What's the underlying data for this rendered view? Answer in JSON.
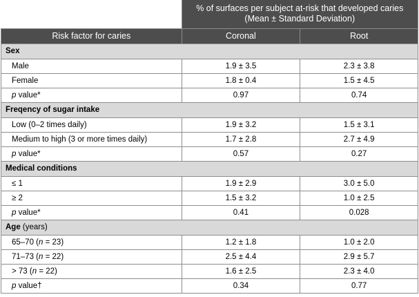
{
  "table": {
    "group_header": "% of surfaces per subject at-risk that developed caries (Mean ± Standard Deviation)",
    "col_risk": "Risk factor for caries",
    "col_coronal": "Coronal",
    "col_root": "Root",
    "sex": {
      "title": "Sex",
      "rows": [
        {
          "label": "Male",
          "coronal": "1.9 ± 3.5",
          "root": "2.3 ± 3.8"
        },
        {
          "label": "Female",
          "coronal": "1.8 ± 0.4",
          "root": "1.5 ± 4.5"
        }
      ],
      "p": {
        "italic": "p",
        "rest": " value*",
        "coronal": "0.97",
        "root": "0.74"
      }
    },
    "sugar": {
      "title": "Freqency of sugar intake",
      "rows": [
        {
          "label": "Low (0–2 times daily)",
          "coronal": "1.9 ± 3.2",
          "root": "1.5 ± 3.1"
        },
        {
          "label": "Medium to high (3 or more times daily)",
          "coronal": "1.7 ± 2.8",
          "root": "2.7 ± 4.9"
        }
      ],
      "p": {
        "italic": "p",
        "rest": " value*",
        "coronal": "0.57",
        "root": "0.27"
      }
    },
    "medical": {
      "title": "Medical conditions",
      "rows": [
        {
          "label": "≤ 1",
          "coronal": "1.9 ± 2.9",
          "root": "3.0 ± 5.0"
        },
        {
          "label": "≥ 2",
          "coronal": "1.5 ± 3.2",
          "root": "1.0 ± 2.5"
        }
      ],
      "p": {
        "italic": "p",
        "rest": " value*",
        "coronal": "0.41",
        "root": "0.028"
      }
    },
    "age": {
      "title": "Age",
      "title_suffix": " (years)",
      "rows": [
        {
          "pre": "65–70 (",
          "n": "n",
          "post": " = 23)",
          "coronal": "1.2 ± 1.8",
          "root": "1.0 ± 2.0"
        },
        {
          "pre": "71–73 (",
          "n": "n",
          "post": " = 22)",
          "coronal": "2.5 ± 4.4",
          "root": "2.9 ± 5.7"
        },
        {
          "pre": "> 73 (",
          "n": "n",
          "post": " = 22)",
          "coronal": "1.6 ± 2.5",
          "root": "2.3 ± 4.0"
        }
      ],
      "p": {
        "italic": "p",
        "rest": " value†",
        "coronal": "0.34",
        "root": "0.77"
      }
    }
  }
}
